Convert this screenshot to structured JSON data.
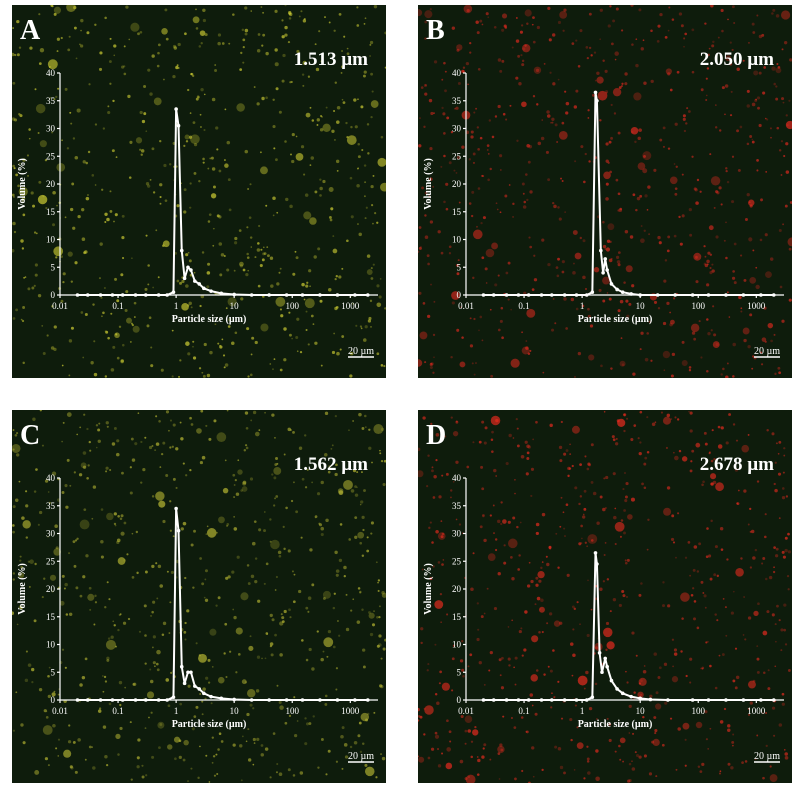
{
  "chart_data": [
    {
      "type": "line",
      "panel_label": "A",
      "annotation": "1.513 µm",
      "xlabel": "Particle size (µm)",
      "ylabel": "Volume (%)",
      "scale_bar": "20 µm",
      "xscale": "log",
      "xlim": [
        0.01,
        3000
      ],
      "ylim": [
        0,
        40
      ],
      "xticks": [
        0.01,
        0.1,
        1,
        10,
        100,
        1000
      ],
      "yticks": [
        0,
        5,
        10,
        15,
        20,
        25,
        30,
        35,
        40
      ],
      "color": "#ffffff",
      "speckle_color": "#c8c832",
      "x": [
        0.02,
        0.03,
        0.05,
        0.08,
        0.12,
        0.2,
        0.3,
        0.5,
        0.7,
        0.9,
        1.0,
        1.1,
        1.25,
        1.4,
        1.6,
        1.8,
        2.1,
        2.5,
        3,
        4,
        6,
        10,
        20,
        40,
        80,
        150,
        300,
        600,
        1200,
        2000
      ],
      "values": [
        0,
        0,
        0,
        0,
        0,
        0,
        0,
        0,
        0,
        0.5,
        33.5,
        30.5,
        8,
        3,
        5,
        4.5,
        2.5,
        2,
        1.2,
        0.7,
        0.3,
        0.1,
        0,
        0,
        0,
        0,
        0,
        0,
        0,
        0
      ]
    },
    {
      "type": "line",
      "panel_label": "B",
      "annotation": "2.050 µm",
      "xlabel": "Particle size (µm)",
      "ylabel": "Volume (%)",
      "scale_bar": "20 µm",
      "xscale": "log",
      "xlim": [
        0.01,
        3000
      ],
      "ylim": [
        0,
        40
      ],
      "xticks": [
        0.01,
        0.1,
        1,
        10,
        100,
        1000
      ],
      "yticks": [
        0,
        5,
        10,
        15,
        20,
        25,
        30,
        35,
        40
      ],
      "color": "#ffffff",
      "speckle_color": "#d8281e",
      "x": [
        0.02,
        0.03,
        0.05,
        0.08,
        0.12,
        0.2,
        0.3,
        0.5,
        0.8,
        1.2,
        1.5,
        1.7,
        1.8,
        2.1,
        2.3,
        2.5,
        2.7,
        3.2,
        4,
        5,
        7,
        10,
        20,
        40,
        80,
        150,
        300,
        600,
        1200,
        2000
      ],
      "values": [
        0,
        0,
        0,
        0,
        0,
        0,
        0,
        0,
        0,
        0,
        0.5,
        36.5,
        35,
        8,
        4,
        6.5,
        4.5,
        2,
        1,
        0.5,
        0.2,
        0,
        0,
        0,
        0,
        0,
        0,
        0,
        0,
        0
      ]
    },
    {
      "type": "line",
      "panel_label": "C",
      "annotation": "1.562 µm",
      "xlabel": "Particle size (µm)",
      "ylabel": "Volume (%)",
      "scale_bar": "20 µm",
      "xscale": "log",
      "xlim": [
        0.01,
        3000
      ],
      "ylim": [
        0,
        40
      ],
      "xticks": [
        0.01,
        0.1,
        1,
        10,
        100,
        1000
      ],
      "yticks": [
        0,
        5,
        10,
        15,
        20,
        25,
        30,
        35,
        40
      ],
      "color": "#ffffff",
      "speckle_color": "#b4b432",
      "x": [
        0.02,
        0.03,
        0.05,
        0.08,
        0.12,
        0.2,
        0.3,
        0.5,
        0.7,
        0.9,
        1.0,
        1.1,
        1.25,
        1.4,
        1.6,
        1.8,
        2.1,
        2.5,
        3,
        4,
        6,
        10,
        20,
        40,
        80,
        150,
        300,
        600,
        1200,
        2000
      ],
      "values": [
        0,
        0,
        0,
        0,
        0,
        0,
        0,
        0,
        0,
        0.5,
        34.5,
        30.5,
        6,
        3,
        5,
        5,
        2.5,
        2,
        1.2,
        0.6,
        0.3,
        0.1,
        0,
        0,
        0,
        0,
        0,
        0,
        0,
        0
      ]
    },
    {
      "type": "line",
      "panel_label": "D",
      "annotation": "2.678 µm",
      "xlabel": "Particle size (µm)",
      "ylabel": "Volume (%)",
      "scale_bar": "20 µm",
      "xscale": "log",
      "xlim": [
        0.01,
        3000
      ],
      "ylim": [
        0,
        40
      ],
      "xticks": [
        0.01,
        0.1,
        1,
        10,
        100,
        1000
      ],
      "yticks": [
        0,
        5,
        10,
        15,
        20,
        25,
        30,
        35,
        40
      ],
      "color": "#ffffff",
      "speckle_color": "#e02a1e",
      "x": [
        0.02,
        0.03,
        0.05,
        0.08,
        0.12,
        0.2,
        0.3,
        0.5,
        0.8,
        1.2,
        1.5,
        1.7,
        1.8,
        2.0,
        2.2,
        2.5,
        2.7,
        3.2,
        4,
        5,
        7,
        10,
        15,
        30,
        80,
        150,
        300,
        600,
        1200,
        2000
      ],
      "values": [
        0,
        0,
        0,
        0,
        0,
        0,
        0,
        0,
        0,
        0,
        0.5,
        26.5,
        24.5,
        8.5,
        5,
        7.5,
        6,
        3.5,
        2,
        1.2,
        0.6,
        0.3,
        0.1,
        0,
        0,
        0,
        0,
        0,
        0,
        0
      ]
    }
  ]
}
